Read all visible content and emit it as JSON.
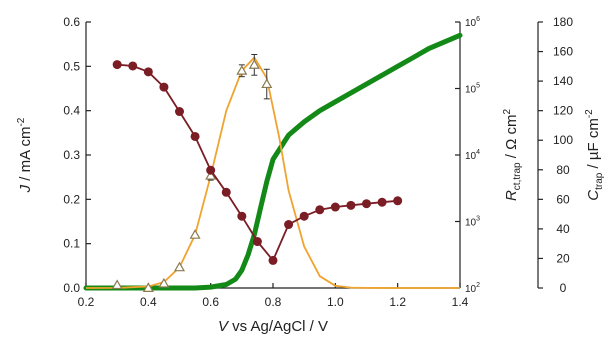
{
  "chart_data": {
    "type": "line",
    "title": "",
    "x_axis": {
      "label_italic": "V",
      "label_rest": " vs Ag/AgCl / V",
      "range": [
        0.2,
        1.4
      ],
      "ticks": [
        "0.2",
        "0.4",
        "0.6",
        "0.8",
        "1.0",
        "1.2",
        "1.4"
      ]
    },
    "left_axis": {
      "label_italic": "J",
      "label_rest": " / mA cm",
      "label_sup": "-2",
      "range": [
        0,
        0.6
      ],
      "ticks": [
        "0.0",
        "0.1",
        "0.2",
        "0.3",
        "0.4",
        "0.5",
        "0.6"
      ]
    },
    "right_axis_1": {
      "label_italic": "R",
      "label_sub": "ct,trap",
      "label_rest": " / Ω cm",
      "label_sup": "2",
      "scale": "log",
      "range": [
        100,
        1000000
      ],
      "tick_base": "10",
      "tick_exponents": [
        "2",
        "3",
        "4",
        "5",
        "6"
      ]
    },
    "right_axis_2": {
      "label_italic": "C",
      "label_sub": "trap",
      "label_rest": " / µF cm",
      "label_sup": "-2",
      "range": [
        0,
        180
      ],
      "ticks": [
        "0",
        "20",
        "40",
        "60",
        "80",
        "100",
        "120",
        "140",
        "160",
        "180"
      ]
    },
    "grid": false,
    "legend": "none",
    "series": [
      {
        "kind": "current_density",
        "axis": "left",
        "color": "#138a17",
        "style": "thick line",
        "x": [
          0.2,
          0.55,
          0.6,
          0.65,
          0.68,
          0.7,
          0.72,
          0.74,
          0.76,
          0.78,
          0.8,
          0.85,
          0.9,
          0.95,
          1.0,
          1.05,
          1.1,
          1.15,
          1.2,
          1.25,
          1.3,
          1.35,
          1.4
        ],
        "y": [
          0.0,
          0.0,
          0.002,
          0.008,
          0.02,
          0.04,
          0.075,
          0.12,
          0.18,
          0.24,
          0.29,
          0.345,
          0.375,
          0.4,
          0.42,
          0.44,
          0.46,
          0.48,
          0.5,
          0.52,
          0.54,
          0.555,
          0.57
        ]
      },
      {
        "kind": "R_ct_trap",
        "axis": "right_1",
        "color": "#7a1d24",
        "style": "line with filled circles",
        "x": [
          0.3,
          0.35,
          0.4,
          0.45,
          0.5,
          0.55,
          0.6,
          0.65,
          0.7,
          0.75,
          0.8,
          0.85,
          0.9,
          0.95,
          1.0,
          1.05,
          1.1,
          1.15,
          1.2
        ],
        "y": [
          229000,
          218000,
          178000,
          105000,
          45000,
          19000,
          5900,
          2750,
          1200,
          500,
          260,
          900,
          1200,
          1500,
          1650,
          1750,
          1850,
          1950,
          2050
        ]
      },
      {
        "kind": "C_trap",
        "axis": "right_2",
        "color": "#f0a32e",
        "marker_color": "#8a7a4e",
        "style": "line with open triangles and error bars",
        "curve_x": [
          0.2,
          0.3,
          0.4,
          0.45,
          0.5,
          0.55,
          0.6,
          0.65,
          0.7,
          0.74,
          0.78,
          0.82,
          0.85,
          0.9,
          0.95,
          1.0,
          1.05,
          1.1,
          1.2,
          1.3,
          1.4
        ],
        "curve_y": [
          0.0,
          0.05,
          1.0,
          4.0,
          14.0,
          36.0,
          76.0,
          120.0,
          147.0,
          156.0,
          142.0,
          102.0,
          66.0,
          28.0,
          8.0,
          1.5,
          0.3,
          0.05,
          0.0,
          0.0,
          0.0
        ],
        "points_x": [
          0.3,
          0.4,
          0.45,
          0.5,
          0.55,
          0.6,
          0.7,
          0.74,
          0.78
        ],
        "points_y": [
          2,
          0,
          3,
          14,
          36,
          76,
          147,
          151,
          138
        ],
        "errors": [
          0,
          0,
          0,
          0,
          0,
          3,
          4,
          7,
          10
        ]
      }
    ]
  }
}
